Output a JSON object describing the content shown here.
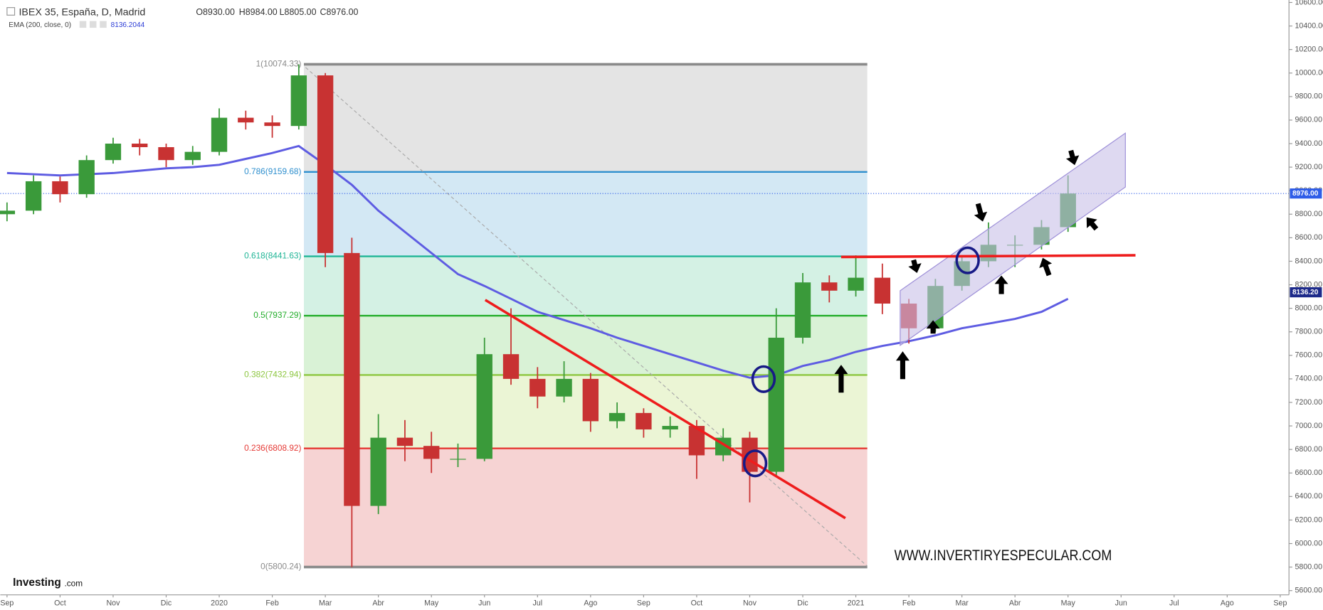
{
  "header": {
    "symbol": "IBEX 35, España, D, Madrid",
    "open": "O8930.00",
    "high": "H8984.00",
    "low": "L8805.00",
    "close": "C8976.00",
    "indicator": "EMA (200, close, 0)",
    "indicator_value": "8136.2044"
  },
  "chart_data": {
    "type": "candlestick",
    "x": [
      0,
      0.5,
      1,
      1.5,
      2,
      2.5,
      3,
      3.5,
      4,
      4.5,
      5,
      5.5,
      6,
      6.5,
      7,
      7.5,
      8,
      8.5,
      9,
      9.5,
      10,
      10.5,
      11,
      11.5,
      12,
      12.5,
      13,
      13.5,
      14,
      14.5,
      15,
      15.5,
      16,
      16.5,
      17,
      17.5,
      18,
      18.5,
      19,
      19.5,
      20
    ],
    "open": [
      8800,
      8830,
      9080,
      8970,
      9260,
      9400,
      9370,
      9260,
      9330,
      9620,
      9580,
      9550,
      9980,
      8470,
      6320,
      6900,
      6830,
      6720,
      6720,
      7610,
      7400,
      7250,
      7400,
      7040,
      7110,
      6970,
      7000,
      6750,
      6900,
      6610,
      7750,
      8220,
      8150,
      8260,
      8040,
      7830,
      8190,
      8400,
      8540,
      8540,
      8690
    ],
    "high": [
      8900,
      9130,
      9120,
      9300,
      9450,
      9440,
      9400,
      9380,
      9700,
      9680,
      9640,
      10074,
      10000,
      8600,
      7100,
      7050,
      6950,
      6850,
      7750,
      8000,
      7500,
      7550,
      7450,
      7200,
      7150,
      7080,
      7050,
      6980,
      6950,
      8000,
      8300,
      8280,
      8450,
      8380,
      8080,
      8250,
      8450,
      8730,
      8620,
      8750,
      9130
    ],
    "low": [
      8740,
      8800,
      8900,
      8940,
      9230,
      9300,
      9200,
      9220,
      9300,
      9520,
      9450,
      9520,
      8350,
      5800,
      6250,
      6700,
      6600,
      6650,
      6700,
      7350,
      7150,
      7200,
      6950,
      6980,
      6900,
      6900,
      6550,
      6700,
      6350,
      6580,
      7700,
      8050,
      8100,
      7950,
      7700,
      7800,
      8150,
      8350,
      8350,
      8500,
      8650
    ],
    "close": [
      8830,
      9080,
      8970,
      9260,
      9400,
      9370,
      9260,
      9330,
      9620,
      9580,
      9550,
      9980,
      8470,
      6320,
      6900,
      6830,
      6720,
      6720,
      7610,
      7400,
      7250,
      7400,
      7040,
      7110,
      6970,
      7000,
      6750,
      6900,
      6610,
      7750,
      8220,
      8150,
      8260,
      8040,
      7830,
      8190,
      8400,
      8540,
      8540,
      8690,
      8976
    ],
    "up_color": "#3a9a3a",
    "down_color": "#c83232",
    "ema": {
      "color": "#5e5ce2",
      "values": [
        9150,
        9140,
        9130,
        9140,
        9150,
        9170,
        9190,
        9200,
        9220,
        9270,
        9320,
        9380,
        9220,
        9050,
        8830,
        8650,
        8470,
        8290,
        8190,
        8080,
        7970,
        7900,
        7830,
        7750,
        7680,
        7610,
        7540,
        7470,
        7410,
        7430,
        7510,
        7560,
        7630,
        7680,
        7720,
        7770,
        7830,
        7870,
        7910,
        7970,
        8080
      ]
    },
    "xlim": [
      -0.127,
      24.165
    ],
    "xticks": [
      {
        "value": 0,
        "label": "Sep"
      },
      {
        "value": 1,
        "label": "Oct"
      },
      {
        "value": 2,
        "label": "Nov"
      },
      {
        "value": 3,
        "label": "Dic"
      },
      {
        "value": 4,
        "label": "2020"
      },
      {
        "value": 5,
        "label": "Feb"
      },
      {
        "value": 6,
        "label": "Mar"
      },
      {
        "value": 7,
        "label": "Abr"
      },
      {
        "value": 8,
        "label": "May"
      },
      {
        "value": 9,
        "label": "Jun"
      },
      {
        "value": 10,
        "label": "Jul"
      },
      {
        "value": 11,
        "label": "Ago"
      },
      {
        "value": 12,
        "label": "Sep"
      },
      {
        "value": 13,
        "label": "Oct"
      },
      {
        "value": 14,
        "label": "Nov"
      },
      {
        "value": 15,
        "label": "Dic"
      },
      {
        "value": 16,
        "label": "2021"
      },
      {
        "value": 17,
        "label": "Feb"
      },
      {
        "value": 18,
        "label": "Mar"
      },
      {
        "value": 19,
        "label": "Abr"
      },
      {
        "value": 20,
        "label": "May"
      },
      {
        "value": 21,
        "label": "Jun"
      },
      {
        "value": 22,
        "label": "Jul"
      },
      {
        "value": 23,
        "label": "Ago"
      },
      {
        "value": 24,
        "label": "Sep"
      }
    ],
    "ylim": [
      5564,
      10621
    ],
    "yticks": [
      {
        "value": 5600,
        "label": "5600.00"
      },
      {
        "value": 5800,
        "label": "5800.00"
      },
      {
        "value": 6000,
        "label": "6000.00"
      },
      {
        "value": 6200,
        "label": "6200.00"
      },
      {
        "value": 6400,
        "label": "6400.00"
      },
      {
        "value": 6600,
        "label": "6600.00"
      },
      {
        "value": 6800,
        "label": "6800.00"
      },
      {
        "value": 7000,
        "label": "7000.00"
      },
      {
        "value": 7200,
        "label": "7200.00"
      },
      {
        "value": 7400,
        "label": "7400.00"
      },
      {
        "value": 7600,
        "label": "7600.00"
      },
      {
        "value": 7800,
        "label": "7800.00"
      },
      {
        "value": 8000,
        "label": "8000.00"
      },
      {
        "value": 8200,
        "label": "8200.00"
      },
      {
        "value": 8400,
        "label": "8400.00"
      },
      {
        "value": 8600,
        "label": "8600.00"
      },
      {
        "value": 8800,
        "label": "8800.00"
      },
      {
        "value": 9000,
        "label": "9000.00"
      },
      {
        "value": 9200,
        "label": "9200.00"
      },
      {
        "value": 9400,
        "label": "9400.00"
      },
      {
        "value": 9600,
        "label": "9600.00"
      },
      {
        "value": 9800,
        "label": "9800.00"
      },
      {
        "value": 10000,
        "label": "10000.00"
      },
      {
        "value": 10200,
        "label": "10200.00"
      },
      {
        "value": 10400,
        "label": "10400.00"
      },
      {
        "value": 10600,
        "label": "10600.00"
      }
    ],
    "fib_levels": [
      {
        "value": 10074.33,
        "label": "1(10074.33)",
        "color": "#8a8a8a",
        "fill": "#e4e4e4"
      },
      {
        "value": 9159.68,
        "label": "0.786(9159.68)",
        "color": "#2e8fce",
        "fill": "#d3e8f4"
      },
      {
        "value": 8441.63,
        "label": "0.618(8441.63)",
        "color": "#20b596",
        "fill": "#d4f1e4"
      },
      {
        "value": 7937.29,
        "label": "0.5(7937.29)",
        "color": "#22ad2a",
        "fill": "#d9f2d6"
      },
      {
        "value": 7432.94,
        "label": "0.382(7432.94)",
        "color": "#8cc63f",
        "fill": "#ebf5d5"
      },
      {
        "value": 6808.92,
        "label": "0.236(6808.92)",
        "color": "#e53935",
        "fill": "#f6d3d3"
      },
      {
        "value": 5800.24,
        "label": "0(5800.24)",
        "color": "#8a8a8a"
      }
    ],
    "last_price": {
      "value": 8976,
      "label": "8976.00",
      "color": "#2f5de8"
    },
    "ema_tag": {
      "value": 8136.2,
      "label": "8136.20",
      "color": "#1d2a8a"
    },
    "annotation": "WWW.INVERTIRYESPECULAR.COM"
  },
  "logo": {
    "name": "Investing",
    "suffix": ".com"
  }
}
